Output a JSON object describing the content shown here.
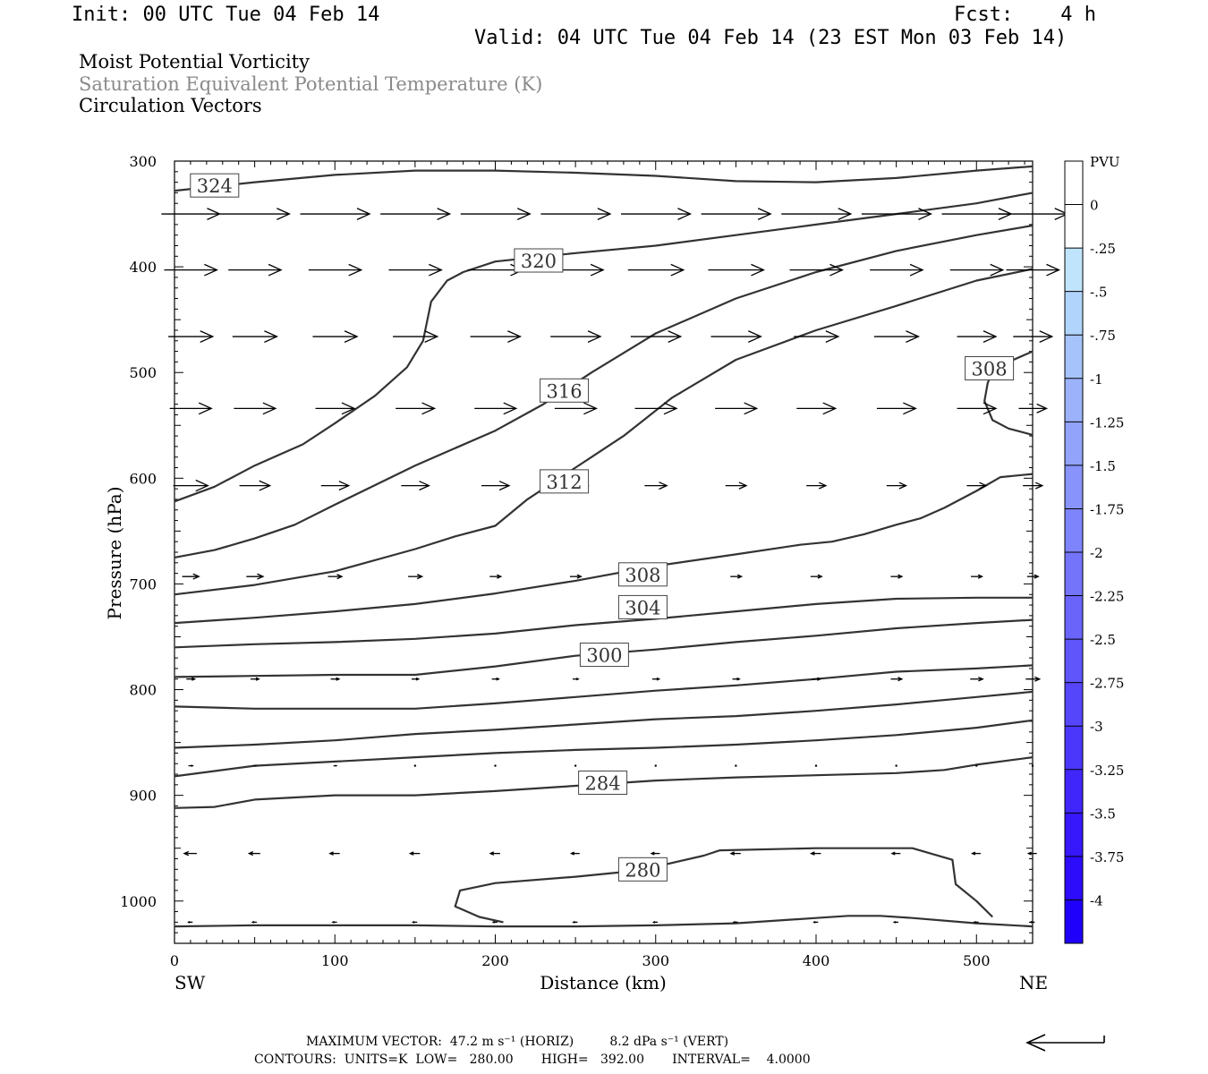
{
  "header": {
    "init": "Init: 00 UTC Tue 04 Feb 14",
    "fcst": "Fcst:    4 h",
    "valid": "Valid: 04 UTC Tue 04 Feb 14 (23 EST Mon 03 Feb 14)",
    "title1": "Moist Potential Vorticity",
    "title2": "Saturation Equivalent Potential Temperature (K)",
    "title3": "Circulation Vectors"
  },
  "footer": {
    "max_vector": "MAXIMUM VECTOR:  47.2 m s⁻¹ (HORIZ)         8.2 dPa s⁻¹ (VERT)",
    "contours": "CONTOURS:  UNITS=K  LOW=   280.00       HIGH=   392.00       INTERVAL=    4.0000"
  },
  "chart_data": {
    "type": "cross-section",
    "xlabel": "Distance (km)",
    "ylabel": "Pressure (hPa)",
    "xlim": [
      0,
      535
    ],
    "ylim": [
      300,
      1040
    ],
    "y_scale": "linear, inverted",
    "xticks": [
      "0",
      "100",
      "200",
      "300",
      "400",
      "500"
    ],
    "yticks": [
      "300",
      "400",
      "500",
      "600",
      "700",
      "800",
      "900",
      "1000"
    ],
    "x_end_labels": {
      "left": "SW",
      "right": "NE"
    },
    "colorbar": {
      "title": "PVU",
      "labels": [
        "0",
        "-.25",
        "-.5",
        "-.75",
        "-1",
        "-1.25",
        "-1.5",
        "-1.75",
        "-2",
        "-2.25",
        "-2.5",
        "-2.75",
        "-3",
        "-3.25",
        "-3.5",
        "-3.75",
        "-4"
      ],
      "colors": [
        "#ffffff",
        "#ffffff",
        "#bfe4fb",
        "#b0d4fb",
        "#a6c3fb",
        "#9cb3fb",
        "#92a3fb",
        "#8894fb",
        "#7e84fb",
        "#7474fb",
        "#6a64fb",
        "#5f55fb",
        "#5545fb",
        "#4b36fb",
        "#4126fb",
        "#3717fb",
        "#2d0bfb",
        "#1f00fb"
      ]
    },
    "contours": [
      {
        "level": 324,
        "label": "324",
        "label_at": [
          25,
          323
        ],
        "points": [
          [
            0,
            328
          ],
          [
            50,
            320
          ],
          [
            100,
            313
          ],
          [
            150,
            309
          ],
          [
            200,
            309
          ],
          [
            250,
            311
          ],
          [
            300,
            314
          ],
          [
            350,
            319
          ],
          [
            400,
            320
          ],
          [
            450,
            316
          ],
          [
            500,
            309
          ],
          [
            535,
            305
          ]
        ]
      },
      {
        "level": 320,
        "label": "320",
        "label_at": [
          227,
          394
        ],
        "points": [
          [
            0,
            622
          ],
          [
            25,
            608
          ],
          [
            50,
            588
          ],
          [
            80,
            568
          ],
          [
            100,
            548
          ],
          [
            125,
            522
          ],
          [
            145,
            495
          ],
          [
            155,
            470
          ],
          [
            160,
            433
          ],
          [
            170,
            413
          ],
          [
            180,
            405
          ],
          [
            200,
            395
          ],
          [
            250,
            387
          ],
          [
            300,
            380
          ],
          [
            350,
            370
          ],
          [
            400,
            360
          ],
          [
            450,
            350
          ],
          [
            500,
            340
          ],
          [
            535,
            330
          ]
        ]
      },
      {
        "level": 316,
        "label": "316",
        "label_at": [
          243,
          517
        ],
        "points": [
          [
            0,
            675
          ],
          [
            25,
            668
          ],
          [
            50,
            657
          ],
          [
            75,
            644
          ],
          [
            100,
            625
          ],
          [
            150,
            588
          ],
          [
            200,
            555
          ],
          [
            230,
            530
          ],
          [
            260,
            500
          ],
          [
            300,
            463
          ],
          [
            350,
            430
          ],
          [
            400,
            405
          ],
          [
            450,
            385
          ],
          [
            500,
            370
          ],
          [
            535,
            361
          ]
        ]
      },
      {
        "level": 312,
        "label": "312",
        "label_at": [
          243,
          603
        ],
        "points": [
          [
            0,
            710
          ],
          [
            50,
            701
          ],
          [
            100,
            688
          ],
          [
            150,
            667
          ],
          [
            175,
            655
          ],
          [
            200,
            645
          ],
          [
            220,
            620
          ],
          [
            250,
            590
          ],
          [
            280,
            560
          ],
          [
            310,
            524
          ],
          [
            350,
            488
          ],
          [
            400,
            460
          ],
          [
            450,
            437
          ],
          [
            500,
            413
          ],
          [
            535,
            402
          ]
        ]
      },
      {
        "level": 308,
        "label": "308",
        "label_at": [
          292,
          691
        ],
        "points": [
          [
            0,
            737
          ],
          [
            50,
            732
          ],
          [
            100,
            726
          ],
          [
            150,
            719
          ],
          [
            200,
            709
          ],
          [
            250,
            697
          ],
          [
            300,
            683
          ],
          [
            350,
            672
          ],
          [
            390,
            663
          ],
          [
            410,
            660
          ],
          [
            430,
            653
          ],
          [
            450,
            644
          ],
          [
            465,
            638
          ],
          [
            480,
            628
          ],
          [
            500,
            612
          ],
          [
            515,
            599
          ],
          [
            535,
            596
          ]
        ]
      },
      {
        "level": 308,
        "label": "308",
        "label_at": [
          508,
          496
        ],
        "points": [
          [
            535,
            480
          ],
          [
            520,
            490
          ],
          [
            510,
            498
          ],
          [
            507,
            510
          ],
          [
            505,
            527
          ],
          [
            510,
            545
          ],
          [
            520,
            553
          ],
          [
            535,
            559
          ]
        ]
      },
      {
        "level": 304,
        "label": "304",
        "label_at": [
          292,
          722
        ],
        "points": [
          [
            0,
            760
          ],
          [
            50,
            757
          ],
          [
            100,
            755
          ],
          [
            150,
            752
          ],
          [
            200,
            747
          ],
          [
            250,
            739
          ],
          [
            300,
            733
          ],
          [
            350,
            726
          ],
          [
            400,
            719
          ],
          [
            450,
            714
          ],
          [
            500,
            713
          ],
          [
            535,
            713
          ]
        ]
      },
      {
        "level": 300,
        "label": "300",
        "label_at": [
          268,
          767
        ],
        "points": [
          [
            0,
            788
          ],
          [
            50,
            787
          ],
          [
            100,
            786
          ],
          [
            150,
            786
          ],
          [
            200,
            778
          ],
          [
            250,
            768
          ],
          [
            300,
            762
          ],
          [
            350,
            755
          ],
          [
            400,
            749
          ],
          [
            450,
            742
          ],
          [
            500,
            737
          ],
          [
            535,
            734
          ]
        ]
      },
      {
        "level": 296,
        "label": "",
        "label_at": null,
        "points": [
          [
            0,
            816
          ],
          [
            50,
            818
          ],
          [
            100,
            818
          ],
          [
            150,
            818
          ],
          [
            200,
            813
          ],
          [
            250,
            807
          ],
          [
            300,
            801
          ],
          [
            350,
            796
          ],
          [
            400,
            790
          ],
          [
            450,
            783
          ],
          [
            500,
            780
          ],
          [
            535,
            777
          ]
        ]
      },
      {
        "level": 292,
        "label": "",
        "label_at": null,
        "points": [
          [
            0,
            855
          ],
          [
            50,
            852
          ],
          [
            100,
            848
          ],
          [
            150,
            842
          ],
          [
            200,
            838
          ],
          [
            250,
            833
          ],
          [
            300,
            828
          ],
          [
            350,
            825
          ],
          [
            400,
            820
          ],
          [
            450,
            814
          ],
          [
            500,
            807
          ],
          [
            535,
            802
          ]
        ]
      },
      {
        "level": 288,
        "label": "",
        "label_at": null,
        "points": [
          [
            0,
            882
          ],
          [
            25,
            877
          ],
          [
            50,
            872
          ],
          [
            100,
            868
          ],
          [
            150,
            864
          ],
          [
            200,
            860
          ],
          [
            250,
            857
          ],
          [
            300,
            855
          ],
          [
            350,
            852
          ],
          [
            400,
            848
          ],
          [
            450,
            843
          ],
          [
            500,
            836
          ],
          [
            535,
            829
          ]
        ]
      },
      {
        "level": 284,
        "label": "284",
        "label_at": [
          267,
          888
        ],
        "points": [
          [
            0,
            912
          ],
          [
            25,
            911
          ],
          [
            50,
            904
          ],
          [
            100,
            900
          ],
          [
            150,
            900
          ],
          [
            200,
            896
          ],
          [
            250,
            891
          ],
          [
            300,
            886
          ],
          [
            350,
            883
          ],
          [
            400,
            881
          ],
          [
            450,
            879
          ],
          [
            480,
            876
          ],
          [
            500,
            871
          ],
          [
            535,
            864
          ]
        ]
      },
      {
        "level": 280,
        "label": "280",
        "label_at": [
          292,
          970
        ],
        "points": [
          [
            205,
            1020
          ],
          [
            190,
            1015
          ],
          [
            175,
            1005
          ],
          [
            178,
            990
          ],
          [
            200,
            983
          ],
          [
            250,
            977
          ],
          [
            290,
            971
          ],
          [
            330,
            957
          ],
          [
            340,
            952
          ],
          [
            400,
            950
          ],
          [
            460,
            950
          ],
          [
            485,
            961
          ],
          [
            487,
            984
          ],
          [
            500,
            1000
          ],
          [
            510,
            1015
          ]
        ]
      },
      {
        "level": 280,
        "label": "",
        "label_at": null,
        "points": [
          [
            0,
            1024
          ],
          [
            50,
            1023
          ],
          [
            100,
            1023
          ],
          [
            150,
            1023
          ],
          [
            200,
            1024
          ],
          [
            250,
            1024
          ],
          [
            300,
            1023
          ],
          [
            350,
            1021
          ],
          [
            400,
            1016
          ],
          [
            420,
            1014
          ],
          [
            440,
            1014
          ],
          [
            460,
            1016
          ],
          [
            500,
            1021
          ],
          [
            535,
            1024
          ]
        ]
      }
    ],
    "vectors": [
      {
        "p": 350,
        "u": [
          42,
          50,
          50,
          50,
          50,
          50,
          50,
          50,
          50,
          50,
          50,
          50
        ]
      },
      {
        "p": 403,
        "u": [
          38,
          38,
          38,
          38,
          40,
          40,
          40,
          40,
          38,
          38,
          38,
          38
        ]
      },
      {
        "p": 466,
        "u": [
          32,
          32,
          32,
          32,
          36,
          36,
          36,
          36,
          32,
          32,
          28,
          28
        ]
      },
      {
        "p": 534,
        "u": [
          30,
          30,
          28,
          28,
          30,
          30,
          30,
          30,
          28,
          28,
          28,
          20
        ]
      },
      {
        "p": 607,
        "u": [
          25,
          22,
          20,
          20,
          20,
          18,
          16,
          15,
          14,
          14,
          14,
          14
        ]
      },
      {
        "p": 693,
        "u": [
          12,
          12,
          10,
          10,
          8,
          8,
          8,
          8,
          8,
          8,
          8,
          8
        ]
      },
      {
        "p": 790,
        "u": [
          6,
          6,
          6,
          5,
          5,
          4,
          5,
          5,
          6,
          8,
          9,
          10
        ]
      },
      {
        "p": 872,
        "u": [
          3,
          2,
          2,
          1,
          1,
          1,
          1,
          1,
          1,
          1,
          1,
          1
        ]
      },
      {
        "p": 955,
        "u": [
          -9,
          -8,
          -7,
          -7,
          -7,
          -6,
          -6,
          -7,
          -7,
          -6,
          -6,
          -6
        ]
      },
      {
        "p": 1020,
        "u": [
          -3,
          -3,
          -3,
          -3,
          -3,
          -3,
          -3,
          -3,
          -3,
          -3,
          -3,
          -3
        ]
      }
    ],
    "vector_x": [
      10,
      50,
      100,
      150,
      200,
      250,
      300,
      350,
      400,
      450,
      500,
      535
    ],
    "reference_vector": "max"
  }
}
